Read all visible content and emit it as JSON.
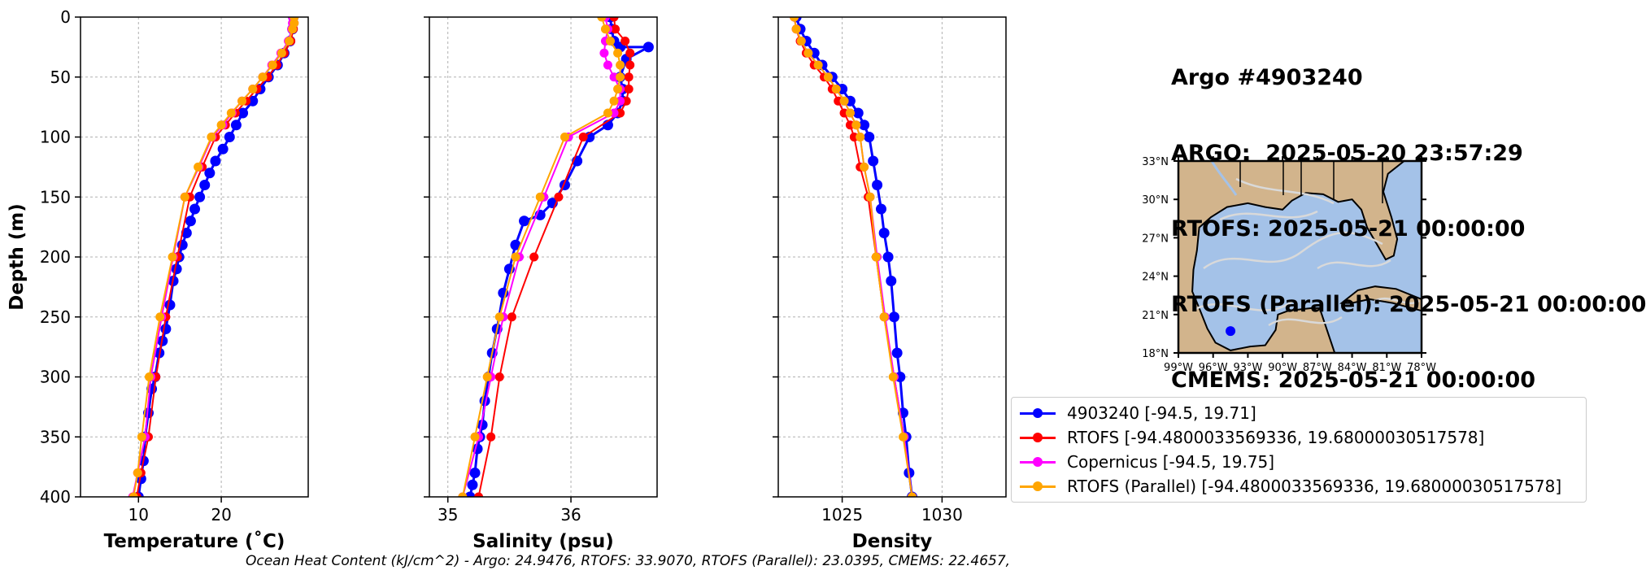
{
  "figure_title": {
    "lines": [
      "Argo #4903240",
      "ARGO:  2025-05-20 23:57:29",
      "RTOFS: 2025-05-21 00:00:00",
      "RTOFS (Parallel): 2025-05-21 00:00:00",
      "CMEMS: 2025-05-21 00:00:00"
    ]
  },
  "footer": "Ocean Heat Content (kJ/cm^2) - Argo: 24.9476,  RTOFS: 33.9070,  RTOFS (Parallel): 23.0395,  CMEMS: 22.4657,",
  "colors": {
    "argo": "#0000ff",
    "rtofs": "#ff0000",
    "copernicus": "#ff00ff",
    "rtofs_parallel": "#ffa500",
    "land": "#d2b48c",
    "ocean": "#a4c2e8",
    "current": "#d9d9d9"
  },
  "legend": [
    {
      "label": "4903240 [-94.5, 19.71]",
      "color": "#0000ff"
    },
    {
      "label": "RTOFS [-94.4800033569336, 19.68000030517578]",
      "color": "#ff0000"
    },
    {
      "label": "Copernicus [-94.5, 19.75]",
      "color": "#ff00ff"
    },
    {
      "label": "RTOFS (Parallel) [-94.4800033569336, 19.68000030517578]",
      "color": "#ffa500"
    }
  ],
  "chart_data": [
    {
      "type": "line",
      "xlabel": "Temperature (˚C)",
      "ylabel": "Depth (m)",
      "xlim": [
        3,
        30.5
      ],
      "ylim": [
        400,
        0
      ],
      "xticks": [
        10,
        20
      ],
      "yticks": [
        0,
        50,
        100,
        150,
        200,
        250,
        300,
        350,
        400
      ],
      "grid": true,
      "series": [
        {
          "name": "4903240",
          "x": [
            28.7,
            28.6,
            28.3,
            27.6,
            26.8,
            25.7,
            24.7,
            23.8,
            22.6,
            21.8,
            21.0,
            20.2,
            19.3,
            18.6,
            18.0,
            17.4,
            16.8,
            16.3,
            15.8,
            15.3,
            14.9,
            14.6,
            14.2,
            13.8,
            13.3,
            12.9,
            12.5,
            12.0,
            11.6,
            11.2,
            10.8,
            10.6,
            10.3,
            10.0
          ],
          "y": [
            0,
            10,
            20,
            30,
            40,
            50,
            60,
            70,
            80,
            90,
            100,
            110,
            120,
            130,
            140,
            150,
            160,
            170,
            180,
            190,
            200,
            210,
            220,
            240,
            260,
            270,
            280,
            300,
            310,
            330,
            350,
            370,
            385,
            400
          ]
        },
        {
          "name": "RTOFS",
          "x": [
            28.8,
            28.8,
            28.7,
            28.4,
            27.6,
            26.7,
            25.6,
            24.3,
            23.0,
            21.7,
            20.5,
            19.3,
            17.7,
            16.2,
            14.7,
            13.3,
            12.1,
            11.2,
            10.3,
            9.8
          ],
          "y": [
            0,
            5,
            10,
            20,
            30,
            40,
            50,
            60,
            70,
            80,
            90,
            100,
            125,
            150,
            200,
            250,
            300,
            350,
            380,
            400
          ]
        },
        {
          "name": "Copernicus",
          "x": [
            28.6,
            28.6,
            28.5,
            28.1,
            27.2,
            26.1,
            25.0,
            23.8,
            22.5,
            21.3,
            20.2,
            18.9,
            17.3,
            15.6,
            14.2,
            12.8,
            11.5,
            10.8,
            9.9,
            9.3
          ],
          "y": [
            0,
            5,
            10,
            20,
            30,
            40,
            50,
            60,
            70,
            80,
            90,
            100,
            125,
            150,
            200,
            250,
            300,
            350,
            380,
            400
          ]
        },
        {
          "name": "RTOFS (Parallel)",
          "x": [
            28.8,
            28.8,
            28.6,
            28.2,
            27.3,
            26.2,
            25.0,
            23.8,
            22.5,
            21.2,
            20.0,
            18.8,
            17.2,
            15.6,
            14.1,
            12.6,
            11.3,
            10.4,
            9.9,
            9.4
          ],
          "y": [
            0,
            5,
            10,
            20,
            30,
            40,
            50,
            60,
            70,
            80,
            90,
            100,
            125,
            150,
            200,
            250,
            300,
            350,
            380,
            400
          ]
        }
      ]
    },
    {
      "type": "line",
      "xlabel": "Salinity (psu)",
      "ylabel": "",
      "xlim": [
        34.85,
        36.7
      ],
      "ylim": [
        400,
        0
      ],
      "xticks": [
        35,
        36
      ],
      "yticks": [
        0,
        50,
        100,
        150,
        200,
        250,
        300,
        350,
        400
      ],
      "grid": true,
      "series": [
        {
          "name": "4903240",
          "x": [
            36.32,
            36.33,
            36.35,
            36.4,
            36.63,
            36.45,
            36.4,
            36.42,
            36.42,
            36.38,
            36.3,
            36.15,
            36.05,
            35.95,
            35.85,
            35.75,
            35.62,
            35.55,
            35.5,
            35.45,
            35.4,
            35.36,
            35.33,
            35.3,
            35.28,
            35.26,
            35.24,
            35.22,
            35.2,
            35.18
          ],
          "y": [
            0,
            10,
            20,
            25,
            25,
            35,
            50,
            60,
            70,
            80,
            90,
            100,
            120,
            140,
            155,
            165,
            170,
            190,
            210,
            230,
            260,
            280,
            300,
            320,
            340,
            350,
            360,
            380,
            390,
            400
          ]
        },
        {
          "name": "RTOFS",
          "x": [
            36.35,
            36.36,
            36.44,
            36.48,
            36.48,
            36.47,
            36.47,
            36.45,
            36.4,
            36.1,
            35.9,
            35.7,
            35.52,
            35.42,
            35.35,
            35.25
          ],
          "y": [
            0,
            10,
            20,
            30,
            40,
            50,
            60,
            70,
            80,
            100,
            150,
            200,
            250,
            300,
            350,
            400
          ]
        },
        {
          "name": "Copernicus",
          "x": [
            36.28,
            36.3,
            36.28,
            36.27,
            36.3,
            36.35,
            36.4,
            36.4,
            36.35,
            35.98,
            35.78,
            35.58,
            35.45,
            35.35,
            35.25,
            35.12
          ],
          "y": [
            0,
            10,
            20,
            30,
            40,
            50,
            60,
            70,
            80,
            100,
            150,
            200,
            250,
            300,
            350,
            400
          ]
        },
        {
          "name": "RTOFS (Parallel)",
          "x": [
            36.25,
            36.28,
            36.32,
            36.38,
            36.4,
            36.4,
            36.38,
            36.35,
            36.3,
            35.95,
            35.75,
            35.55,
            35.42,
            35.32,
            35.22,
            35.12
          ],
          "y": [
            0,
            10,
            20,
            30,
            40,
            50,
            60,
            70,
            80,
            100,
            150,
            200,
            250,
            300,
            350,
            400
          ]
        }
      ]
    },
    {
      "type": "line",
      "xlabel": "Density",
      "ylabel": "",
      "xlim": [
        1021.8,
        1033.2
      ],
      "ylim": [
        400,
        0
      ],
      "xticks": [
        1025,
        1030
      ],
      "yticks": [
        0,
        50,
        100,
        150,
        200,
        250,
        300,
        350,
        400
      ],
      "grid": true,
      "series": [
        {
          "name": "4903240",
          "x": [
            1022.7,
            1022.9,
            1023.2,
            1023.6,
            1024.0,
            1024.5,
            1025.0,
            1025.4,
            1025.8,
            1026.1,
            1026.35,
            1026.55,
            1026.75,
            1026.95,
            1027.1,
            1027.3,
            1027.45,
            1027.6,
            1027.75,
            1027.9,
            1028.05,
            1028.2,
            1028.35,
            1028.5
          ],
          "y": [
            0,
            10,
            20,
            30,
            40,
            50,
            60,
            70,
            80,
            90,
            100,
            120,
            140,
            160,
            180,
            200,
            220,
            250,
            280,
            300,
            330,
            350,
            380,
            400
          ]
        },
        {
          "name": "RTOFS",
          "x": [
            1022.6,
            1022.7,
            1022.9,
            1023.2,
            1023.6,
            1024.1,
            1024.5,
            1024.8,
            1025.1,
            1025.4,
            1025.6,
            1025.9,
            1026.3,
            1026.7,
            1027.1,
            1027.6,
            1028.1,
            1028.5
          ],
          "y": [
            0,
            10,
            20,
            30,
            40,
            50,
            60,
            70,
            80,
            90,
            100,
            125,
            150,
            200,
            250,
            300,
            350,
            400
          ]
        },
        {
          "name": "Copernicus",
          "x": [
            1022.6,
            1022.7,
            1022.95,
            1023.3,
            1023.8,
            1024.3,
            1024.7,
            1025.1,
            1025.4,
            1025.7,
            1025.9,
            1026.1,
            1026.4,
            1026.75,
            1027.15,
            1027.6,
            1028.1,
            1028.5
          ],
          "y": [
            0,
            10,
            20,
            30,
            40,
            50,
            60,
            70,
            80,
            90,
            100,
            125,
            150,
            200,
            250,
            300,
            350,
            400
          ]
        },
        {
          "name": "RTOFS (Parallel)",
          "x": [
            1022.6,
            1022.7,
            1022.95,
            1023.3,
            1023.8,
            1024.3,
            1024.7,
            1025.1,
            1025.4,
            1025.7,
            1025.9,
            1026.1,
            1026.4,
            1026.7,
            1027.1,
            1027.55,
            1028.05,
            1028.5
          ],
          "y": [
            0,
            10,
            20,
            30,
            40,
            50,
            60,
            70,
            80,
            90,
            100,
            125,
            150,
            200,
            250,
            300,
            350,
            400
          ]
        }
      ]
    }
  ],
  "map": {
    "lat_ticks": [
      "33°N",
      "30°N",
      "27°N",
      "24°N",
      "21°N",
      "18°N"
    ],
    "lon_ticks": [
      "99°W",
      "96°W",
      "93°W",
      "90°W",
      "87°W",
      "84°W",
      "81°W",
      "78°W"
    ],
    "float_location": {
      "lon": -94.5,
      "lat": 19.71
    }
  }
}
